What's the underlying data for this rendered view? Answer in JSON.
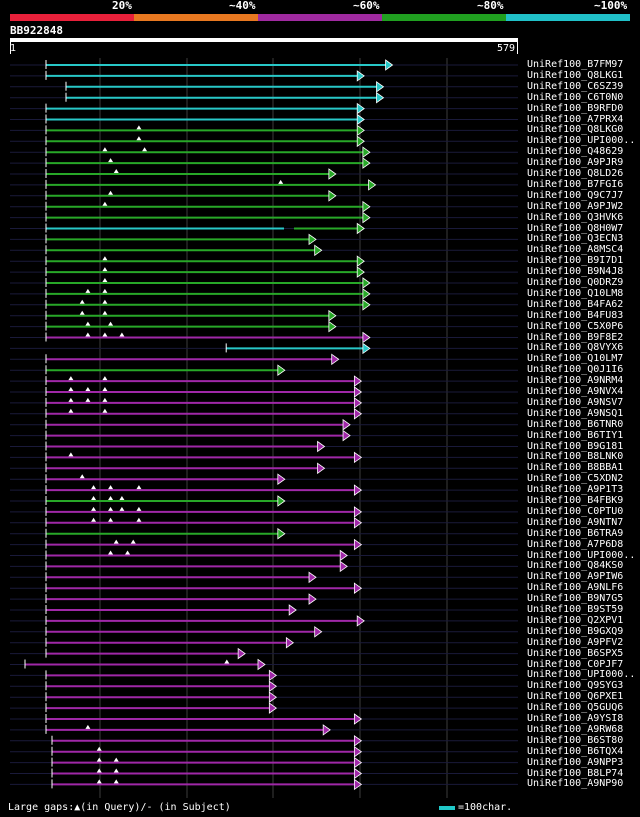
{
  "legend": {
    "segments": [
      {
        "color": "#e8203a"
      },
      {
        "color": "#e87820"
      },
      {
        "color": "#a02aa0"
      },
      {
        "color": "#20a020"
      },
      {
        "color": "#20c0c8"
      }
    ],
    "labels": [
      "20%",
      "~40%",
      "~60%",
      "~80%",
      "~100%"
    ]
  },
  "query": {
    "id": "BB922848",
    "start": "1",
    "end": "579",
    "length": 579
  },
  "colors": {
    "cyan": "#28c8c8",
    "green": "#28a828",
    "purple": "#a028a8",
    "grid": "#3c3c3c",
    "gap": "#ffffff"
  },
  "chart_data": {
    "type": "alignment_overview",
    "query_length": 579,
    "hits": [
      {
        "name": "UniRef100_B7FM97",
        "start": 68,
        "end": 680,
        "color": "cyan",
        "gaps": []
      },
      {
        "name": "UniRef100_Q8LKG1",
        "start": 68,
        "end": 630,
        "color": "cyan",
        "gaps": []
      },
      {
        "name": "UniRef100_C6SZ39",
        "start": 105,
        "end": 664,
        "color": "cyan",
        "gaps": []
      },
      {
        "name": "UniRef100_C6T0N0",
        "start": 105,
        "end": 664,
        "color": "cyan",
        "gaps": []
      },
      {
        "name": "UniRef100_B9RFD0",
        "start": 68,
        "end": 630,
        "color": "cyan",
        "gaps": []
      },
      {
        "name": "UniRef100_A7PRX4",
        "start": 68,
        "end": 630,
        "color": "cyan",
        "gaps": []
      },
      {
        "name": "UniRef100_Q8LKG0",
        "start": 68,
        "end": 630,
        "color": "green",
        "gaps": [
          245
        ]
      },
      {
        "name": "UniRef100_UPI000..",
        "start": 68,
        "end": 630,
        "color": "green",
        "gaps": [
          245
        ]
      },
      {
        "name": "UniRef100_Q48629",
        "start": 68,
        "end": 640,
        "color": "green",
        "gaps": [
          185,
          255
        ]
      },
      {
        "name": "UniRef100_A9PJR9",
        "start": 68,
        "end": 640,
        "color": "green",
        "gaps": [
          195
        ]
      },
      {
        "name": "UniRef100_Q8LD26",
        "start": 68,
        "end": 580,
        "color": "green",
        "gaps": [
          205
        ]
      },
      {
        "name": "UniRef100_B7FGI6",
        "start": 68,
        "end": 650,
        "color": "green",
        "gaps": [
          495
        ]
      },
      {
        "name": "UniRef100_Q9C7J7",
        "start": 68,
        "end": 580,
        "color": "green",
        "gaps": [
          195
        ]
      },
      {
        "name": "UniRef100_A9PJW2",
        "start": 68,
        "end": 640,
        "color": "green",
        "gaps": [
          185
        ]
      },
      {
        "name": "UniRef100_Q3HVK6",
        "start": 68,
        "end": 640,
        "color": "green",
        "gaps": []
      },
      {
        "name": "UniRef100_Q8H0W7",
        "start": 68,
        "end": 630,
        "color": "mixed",
        "gaps": []
      },
      {
        "name": "UniRef100_Q3ECN3",
        "start": 68,
        "end": 545,
        "color": "green",
        "gaps": []
      },
      {
        "name": "UniRef100_A8MSC4",
        "start": 68,
        "end": 555,
        "color": "green",
        "gaps": []
      },
      {
        "name": "UniRef100_B9I7D1",
        "start": 68,
        "end": 630,
        "color": "green",
        "gaps": [
          185
        ]
      },
      {
        "name": "UniRef100_B9N4J8",
        "start": 68,
        "end": 630,
        "color": "green",
        "gaps": [
          185
        ]
      },
      {
        "name": "UniRef100_Q0DRZ9",
        "start": 68,
        "end": 640,
        "color": "green",
        "gaps": [
          185
        ]
      },
      {
        "name": "UniRef100_Q10LM8",
        "start": 68,
        "end": 640,
        "color": "green",
        "gaps": [
          155,
          185
        ]
      },
      {
        "name": "UniRef100_B4FA62",
        "start": 68,
        "end": 640,
        "color": "green",
        "gaps": [
          145,
          185
        ]
      },
      {
        "name": "UniRef100_B4FU83",
        "start": 68,
        "end": 580,
        "color": "green",
        "gaps": [
          145,
          185
        ]
      },
      {
        "name": "UniRef100_C5X0P6",
        "start": 68,
        "end": 580,
        "color": "green",
        "gaps": [
          155,
          195
        ]
      },
      {
        "name": "UniRef100_B9F8E2",
        "start": 68,
        "end": 640,
        "color": "purple",
        "gaps": [
          155,
          185,
          215
        ]
      },
      {
        "name": "UniRef100_Q8VYX6",
        "start": 390,
        "end": 640,
        "color": "cyan",
        "gaps": []
      },
      {
        "name": "UniRef100_Q10LM7",
        "start": 68,
        "end": 585,
        "color": "purple",
        "gaps": []
      },
      {
        "name": "UniRef100_Q0J1I6",
        "start": 68,
        "end": 490,
        "color": "green",
        "gaps": []
      },
      {
        "name": "UniRef100_A9NRM4",
        "start": 68,
        "end": 625,
        "color": "purple",
        "gaps": [
          125,
          185
        ]
      },
      {
        "name": "UniRef100_A9NVX4",
        "start": 68,
        "end": 625,
        "color": "purple",
        "gaps": [
          125,
          155,
          185
        ]
      },
      {
        "name": "UniRef100_A9NSV7",
        "start": 68,
        "end": 625,
        "color": "purple",
        "gaps": [
          125,
          155,
          185
        ]
      },
      {
        "name": "UniRef100_A9NSQ1",
        "start": 68,
        "end": 625,
        "color": "purple",
        "gaps": [
          125,
          185
        ]
      },
      {
        "name": "UniRef100_B6TNR0",
        "start": 68,
        "end": 605,
        "color": "purple",
        "gaps": []
      },
      {
        "name": "UniRef100_B6TIY1",
        "start": 68,
        "end": 605,
        "color": "purple",
        "gaps": []
      },
      {
        "name": "UniRef100_B9G181",
        "start": 68,
        "end": 560,
        "color": "purple",
        "gaps": []
      },
      {
        "name": "UniRef100_B8LNK0",
        "start": 68,
        "end": 625,
        "color": "purple",
        "gaps": [
          125
        ]
      },
      {
        "name": "UniRef100_B8BBA1",
        "start": 68,
        "end": 560,
        "color": "purple",
        "gaps": []
      },
      {
        "name": "UniRef100_C5XDN2",
        "start": 68,
        "end": 490,
        "color": "purple",
        "gaps": [
          145
        ]
      },
      {
        "name": "UniRef100_A9P1T3",
        "start": 68,
        "end": 625,
        "color": "purple",
        "gaps": [
          165,
          195,
          245
        ]
      },
      {
        "name": "UniRef100_B4FBK9",
        "start": 68,
        "end": 490,
        "color": "green",
        "gaps": [
          165,
          195,
          215
        ]
      },
      {
        "name": "UniRef100_C0PTU0",
        "start": 68,
        "end": 625,
        "color": "purple",
        "gaps": [
          165,
          195,
          215,
          245
        ]
      },
      {
        "name": "UniRef100_A9NTN7",
        "start": 68,
        "end": 625,
        "color": "purple",
        "gaps": [
          165,
          195,
          245
        ]
      },
      {
        "name": "UniRef100_B6TRA9",
        "start": 68,
        "end": 490,
        "color": "green",
        "gaps": []
      },
      {
        "name": "UniRef100_A7P6D8",
        "start": 68,
        "end": 625,
        "color": "purple",
        "gaps": [
          205,
          235
        ]
      },
      {
        "name": "UniRef100_UPI000..",
        "start": 68,
        "end": 600,
        "color": "purple",
        "gaps": [
          195,
          225
        ]
      },
      {
        "name": "UniRef100_Q84KS0",
        "start": 68,
        "end": 600,
        "color": "purple",
        "gaps": []
      },
      {
        "name": "UniRef100_A9PIW6",
        "start": 68,
        "end": 545,
        "color": "purple",
        "gaps": []
      },
      {
        "name": "UniRef100_A9NLF6",
        "start": 68,
        "end": 625,
        "color": "purple",
        "gaps": []
      },
      {
        "name": "UniRef100_B9N7G5",
        "start": 68,
        "end": 545,
        "color": "purple",
        "gaps": []
      },
      {
        "name": "UniRef100_B9ST59",
        "start": 68,
        "end": 510,
        "color": "purple",
        "gaps": []
      },
      {
        "name": "UniRef100_Q2XPV1",
        "start": 68,
        "end": 630,
        "color": "purple",
        "gaps": []
      },
      {
        "name": "UniRef100_B9GXQ9",
        "start": 68,
        "end": 555,
        "color": "purple",
        "gaps": []
      },
      {
        "name": "UniRef100_A9PFV2",
        "start": 68,
        "end": 505,
        "color": "purple",
        "gaps": []
      },
      {
        "name": "UniRef100_B6SPX5",
        "start": 68,
        "end": 420,
        "color": "purple",
        "gaps": []
      },
      {
        "name": "UniRef100_C0PJF7",
        "start": 28,
        "end": 455,
        "color": "purple",
        "gaps": [
          400
        ]
      },
      {
        "name": "UniRef100_UPI000..",
        "start": 68,
        "end": 475,
        "color": "purple",
        "gaps": []
      },
      {
        "name": "UniRef100_Q9SYG3",
        "start": 68,
        "end": 475,
        "color": "purple",
        "gaps": []
      },
      {
        "name": "UniRef100_Q6PXE1",
        "start": 68,
        "end": 475,
        "color": "purple",
        "gaps": []
      },
      {
        "name": "UniRef100_Q5GUQ6",
        "start": 68,
        "end": 475,
        "color": "purple",
        "gaps": []
      },
      {
        "name": "UniRef100_A9YSI8",
        "start": 68,
        "end": 625,
        "color": "purple",
        "gaps": []
      },
      {
        "name": "UniRef100_A9RW68",
        "start": 68,
        "end": 570,
        "color": "purple",
        "gaps": [
          155
        ]
      },
      {
        "name": "UniRef100_B6ST80",
        "start": 80,
        "end": 625,
        "color": "purple",
        "gaps": []
      },
      {
        "name": "UniRef100_B6TQX4",
        "start": 80,
        "end": 625,
        "color": "purple",
        "gaps": [
          175
        ]
      },
      {
        "name": "UniRef100_A9NPP3",
        "start": 80,
        "end": 625,
        "color": "purple",
        "gaps": [
          175,
          205
        ]
      },
      {
        "name": "UniRef100_B8LP74",
        "start": 80,
        "end": 625,
        "color": "purple",
        "gaps": [
          175,
          205
        ]
      },
      {
        "name": "UniRef100_A9NP90",
        "start": 80,
        "end": 625,
        "color": "purple",
        "gaps": [
          175,
          205
        ]
      }
    ]
  },
  "footer": {
    "gaps_text": "Large gaps:▲(in Query)/- (in Subject)",
    "scale_text": "=100char."
  }
}
